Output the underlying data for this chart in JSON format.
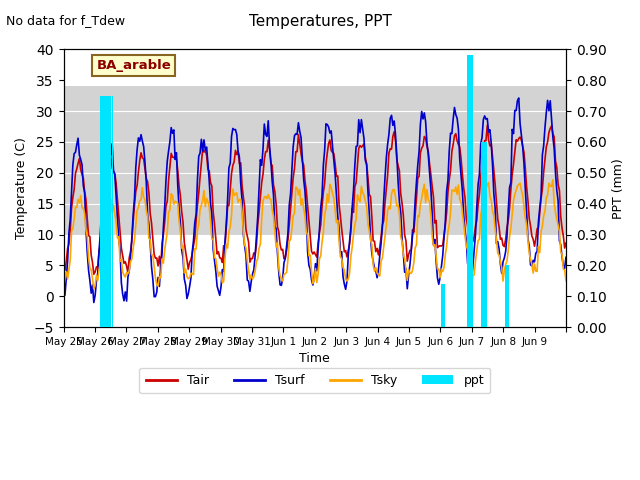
{
  "title": "Temperatures, PPT",
  "subtitle": "No data for f_Tdew",
  "location_label": "BA_arable",
  "xlabel": "Time",
  "ylabel_left": "Temperature (C)",
  "ylabel_right": "PPT (mm)",
  "ylim_left": [
    -5,
    40
  ],
  "ylim_right": [
    0.0,
    0.9
  ],
  "yticks_left": [
    -5,
    0,
    5,
    10,
    15,
    20,
    25,
    30,
    35,
    40
  ],
  "yticks_right": [
    0.0,
    0.1,
    0.2,
    0.3,
    0.4,
    0.5,
    0.6,
    0.7,
    0.8,
    0.9
  ],
  "x_tick_labels": [
    "May 25",
    "May 26",
    "May 27",
    "May 28",
    "May 29",
    "May 30",
    "May 31",
    "Jun 1",
    "Jun 2",
    "Jun 3",
    "Jun 4",
    "Jun 5",
    "Jun 6",
    "Jun 7",
    "Jun 8",
    "Jun 9",
    ""
  ],
  "colors": {
    "Tair": "#cc0000",
    "Tsurf": "#0000cc",
    "Tsky": "#ffa500",
    "ppt": "#00e5ff",
    "bg_band": "#d3d3d3",
    "location_box_bg": "#ffffcc",
    "location_box_edge": "#886622"
  },
  "bg_band_ylim": [
    10,
    34
  ],
  "n_days": 16
}
